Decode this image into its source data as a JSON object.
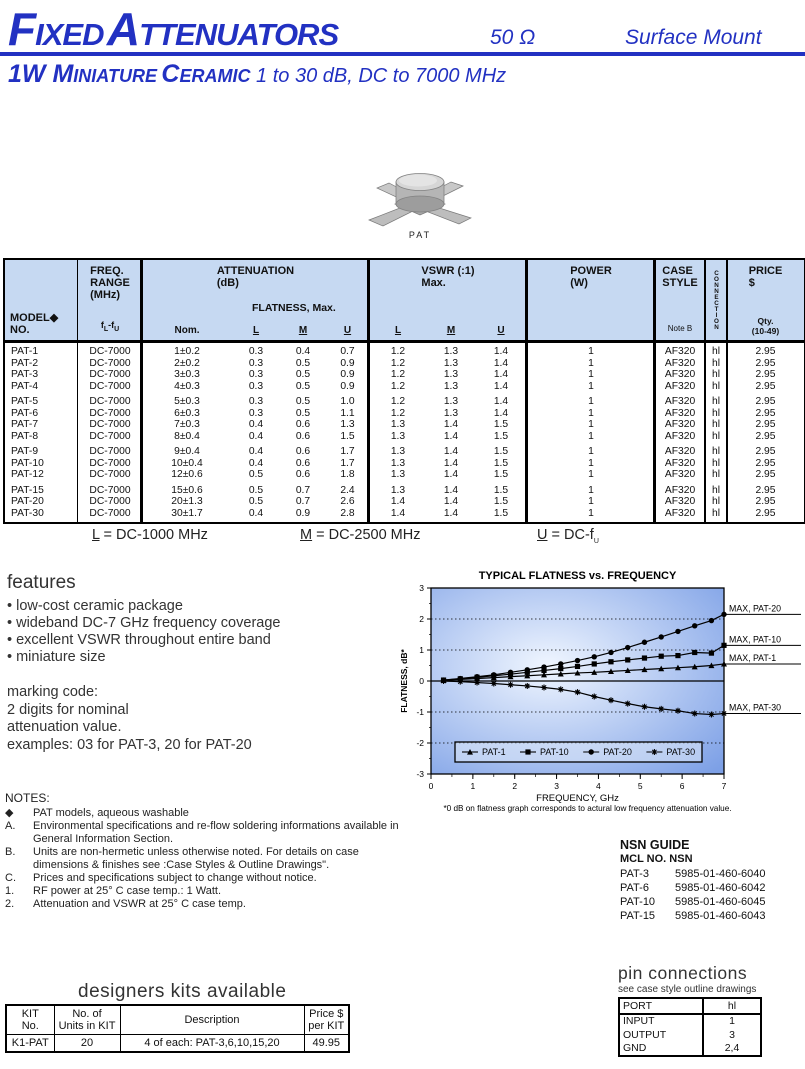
{
  "colors": {
    "accent": "#2231c2",
    "table_header_bg": "#c6d9f2",
    "chart_bg_center": "#f0f6ff",
    "chart_bg_edge": "#7da0e6"
  },
  "header": {
    "title": {
      "w1cap": "F",
      "w1rest": "IXED",
      "w2cap": "A",
      "w2rest": "TTENUATORS"
    },
    "impedance": "50 Ω",
    "mount": "Surface Mount"
  },
  "subtitle": {
    "lead": "1W ",
    "w1cap": "M",
    "w1rest": "INIATURE",
    "w2cap": "C",
    "w2rest": "ERAMIC",
    "rest": " 1 to 30 dB, DC to 7000 MHz"
  },
  "product": {
    "caption": "PAT"
  },
  "spec_table": {
    "header": {
      "model_l1": "MODEL◆",
      "model_l2": "NO.",
      "freq_l1": "FREQ.",
      "freq_l2": "RANGE",
      "freq_l3": "(MHz)",
      "freq_f1": "f",
      "freq_s1": "L",
      "freq_f2": "-f",
      "freq_s2": "U",
      "atten_l1": "ATTENUATION",
      "atten_l2": "(dB)",
      "flatness": "FLATNESS, Max.",
      "nom": "Nom.",
      "l": "L",
      "m": "M",
      "u": "U",
      "vswr_l1": "VSWR (:1)",
      "vswr_l2": "Max.",
      "power_l1": "POWER",
      "power_l2": "(W)",
      "case_l1": "CASE",
      "case_l2": "STYLE",
      "case_note": "Note B",
      "conn": "CONNECTION",
      "price_l1": "PRICE",
      "price_l2": "$",
      "qty_l1": "Qty.",
      "qty_l2": "(10-49)"
    },
    "rows": [
      [
        "PAT-1",
        "DC-7000",
        "1±0.2",
        "0.3",
        "0.4",
        "0.7",
        "1.2",
        "1.3",
        "1.4",
        "1",
        "AF320",
        "hl",
        "2.95"
      ],
      [
        "PAT-2",
        "DC-7000",
        "2±0.2",
        "0.3",
        "0.5",
        "0.9",
        "1.2",
        "1.3",
        "1.4",
        "1",
        "AF320",
        "hl",
        "2.95"
      ],
      [
        "PAT-3",
        "DC-7000",
        "3±0.3",
        "0.3",
        "0.5",
        "0.9",
        "1.2",
        "1.3",
        "1.4",
        "1",
        "AF320",
        "hl",
        "2.95"
      ],
      [
        "PAT-4",
        "DC-7000",
        "4±0.3",
        "0.3",
        "0.5",
        "0.9",
        "1.2",
        "1.3",
        "1.4",
        "1",
        "AF320",
        "hl",
        "2.95"
      ],
      [
        "PAT-5",
        "DC-7000",
        "5±0.3",
        "0.3",
        "0.5",
        "1.0",
        "1.2",
        "1.3",
        "1.4",
        "1",
        "AF320",
        "hl",
        "2.95"
      ],
      [
        "PAT-6",
        "DC-7000",
        "6±0.3",
        "0.3",
        "0.5",
        "1.1",
        "1.2",
        "1.3",
        "1.4",
        "1",
        "AF320",
        "hl",
        "2.95"
      ],
      [
        "PAT-7",
        "DC-7000",
        "7±0.3",
        "0.4",
        "0.6",
        "1.3",
        "1.3",
        "1.4",
        "1.5",
        "1",
        "AF320",
        "hl",
        "2.95"
      ],
      [
        "PAT-8",
        "DC-7000",
        "8±0.4",
        "0.4",
        "0.6",
        "1.5",
        "1.3",
        "1.4",
        "1.5",
        "1",
        "AF320",
        "hl",
        "2.95"
      ],
      [
        "PAT-9",
        "DC-7000",
        "9±0.4",
        "0.4",
        "0.6",
        "1.7",
        "1.3",
        "1.4",
        "1.5",
        "1",
        "AF320",
        "hl",
        "2.95"
      ],
      [
        "PAT-10",
        "DC-7000",
        "10±0.4",
        "0.4",
        "0.6",
        "1.7",
        "1.3",
        "1.4",
        "1.5",
        "1",
        "AF320",
        "hl",
        "2.95"
      ],
      [
        "PAT-12",
        "DC-7000",
        "12±0.6",
        "0.5",
        "0.6",
        "1.8",
        "1.3",
        "1.4",
        "1.5",
        "1",
        "AF320",
        "hl",
        "2.95"
      ],
      [
        "PAT-15",
        "DC-7000",
        "15±0.6",
        "0.5",
        "0.7",
        "2.4",
        "1.3",
        "1.4",
        "1.5",
        "1",
        "AF320",
        "hl",
        "2.95"
      ],
      [
        "PAT-20",
        "DC-7000",
        "20±1.3",
        "0.5",
        "0.7",
        "2.6",
        "1.4",
        "1.4",
        "1.5",
        "1",
        "AF320",
        "hl",
        "2.95"
      ],
      [
        "PAT-30",
        "DC-7000",
        "30±1.7",
        "0.4",
        "0.9",
        "2.8",
        "1.4",
        "1.4",
        "1.5",
        "1",
        "AF320",
        "hl",
        "2.95"
      ]
    ],
    "group_breaks": [
      3,
      7,
      10
    ]
  },
  "band_legend": {
    "l_sym": "L",
    "l_rest": " = DC-1000 MHz",
    "m_sym": "M",
    "m_rest": " = DC-2500 MHz",
    "u_sym": "U",
    "u_rest": " = DC-f",
    "u_sub": "U"
  },
  "features": {
    "heading": "features",
    "items": [
      "low-cost ceramic package",
      "wideband DC-7 GHz frequency coverage",
      "excellent VSWR throughout entire band",
      "miniature size"
    ]
  },
  "marking": {
    "lines": [
      "marking code:",
      "2 digits for nominal",
      "attenuation value.",
      "examples: 03 for PAT-3, 20 for PAT-20"
    ]
  },
  "notes": {
    "heading": "NOTES:",
    "items": [
      {
        "bullet": "◆",
        "text": "PAT models, aqueous washable"
      },
      {
        "bullet": "A.",
        "text": "Environmental specifications and re-flow soldering informations available in General Information Section."
      },
      {
        "bullet": "B.",
        "text": "Units are non-hermetic unless otherwise noted. For details on case dimensions & finishes see :Case Styles & Outline Drawings\"."
      },
      {
        "bullet": "C.",
        "text": "Prices and specifications subject to change without notice."
      },
      {
        "bullet": "1.",
        "text": "RF power at 25° C case temp.: 1 Watt."
      },
      {
        "bullet": "2.",
        "text": "Attenuation and VSWR at 25° C case temp."
      }
    ]
  },
  "chart_data": {
    "type": "line",
    "title": "TYPICAL FLATNESS vs. FREQUENCY",
    "xlabel": "FREQUENCY, GHz",
    "ylabel": "FLATNESS, dB*",
    "xlim": [
      0,
      7
    ],
    "ylim": [
      -3,
      3
    ],
    "xticks": [
      0,
      1,
      2,
      3,
      4,
      5,
      6,
      7
    ],
    "yticks": [
      3,
      2,
      1,
      0,
      -1,
      -2,
      -3
    ],
    "grid": "dashed horizontal at ±1 and ±2, solid at 0",
    "legend_position": "inside bottom",
    "footnote": "*0 dB on flatness graph corresponds to actural low frequency attenuation value.",
    "x": [
      0.3,
      0.7,
      1.1,
      1.5,
      1.9,
      2.3,
      2.7,
      3.1,
      3.5,
      3.9,
      4.3,
      4.7,
      5.1,
      5.5,
      5.9,
      6.3,
      6.7,
      7.0
    ],
    "series": [
      {
        "name": "PAT-1",
        "marker": "triangle",
        "values": [
          0.02,
          0.05,
          0.08,
          0.11,
          0.14,
          0.17,
          0.2,
          0.23,
          0.26,
          0.28,
          0.31,
          0.34,
          0.37,
          0.4,
          0.43,
          0.46,
          0.5,
          0.55
        ]
      },
      {
        "name": "PAT-10",
        "marker": "square",
        "values": [
          0.03,
          0.07,
          0.12,
          0.17,
          0.22,
          0.28,
          0.34,
          0.4,
          0.47,
          0.55,
          0.62,
          0.68,
          0.74,
          0.8,
          0.82,
          0.92,
          0.9,
          1.15
        ]
      },
      {
        "name": "PAT-20",
        "marker": "circle",
        "values": [
          0.03,
          0.08,
          0.14,
          0.2,
          0.28,
          0.36,
          0.45,
          0.55,
          0.66,
          0.78,
          0.92,
          1.08,
          1.25,
          1.42,
          1.6,
          1.78,
          1.95,
          2.15
        ]
      },
      {
        "name": "PAT-30",
        "marker": "star",
        "values": [
          0.0,
          -0.02,
          -0.05,
          -0.08,
          -0.12,
          -0.16,
          -0.21,
          -0.27,
          -0.36,
          -0.5,
          -0.62,
          -0.73,
          -0.83,
          -0.9,
          -0.96,
          -1.05,
          -1.08,
          -1.05
        ]
      }
    ],
    "annotations": [
      {
        "text": "MAX,  PAT-20",
        "y": 2.15
      },
      {
        "text": "MAX,  PAT-10",
        "y": 1.15
      },
      {
        "text": "MAX,   PAT-1",
        "y": 0.55
      },
      {
        "text": "MAX,   PAT-30",
        "y": -1.05
      }
    ]
  },
  "nsn": {
    "heading": "NSN GUIDE",
    "subheading": "MCL NO. NSN",
    "rows": [
      [
        "PAT-3",
        "5985-01-460-6040"
      ],
      [
        "PAT-6",
        "5985-01-460-6042"
      ],
      [
        "PAT-10",
        "5985-01-460-6045"
      ],
      [
        "PAT-15",
        "5985-01-460-6043"
      ]
    ]
  },
  "kits": {
    "heading": "designers kits available",
    "headers": [
      [
        "KIT",
        "No."
      ],
      [
        "No. of",
        "Units in KIT"
      ],
      [
        "Description"
      ],
      [
        "Price $",
        "per KIT"
      ]
    ],
    "row": [
      "K1-PAT",
      "20",
      "4 of each: PAT-3,6,10,15,20",
      "49.95"
    ]
  },
  "pins": {
    "heading": "pin connections",
    "subheading": "see case style outline drawings",
    "port_header": "PORT",
    "conn_header": "hl",
    "rows": [
      [
        "INPUT",
        "1"
      ],
      [
        "OUTPUT",
        "3"
      ],
      [
        "GND",
        "2,4"
      ]
    ]
  }
}
